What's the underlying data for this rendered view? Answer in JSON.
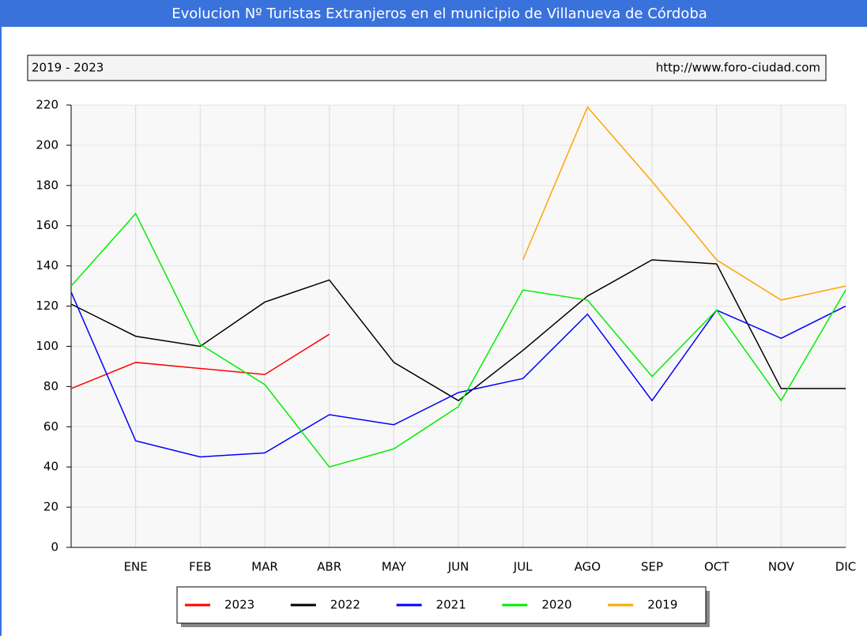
{
  "chart_data": {
    "type": "line",
    "title": "Evolucion Nº Turistas Extranjeros en el municipio de Villanueva de Córdoba",
    "subtitle": "2019 - 2023",
    "source": "http://www.foro-ciudad.com",
    "categories": [
      null,
      "ENE",
      "FEB",
      "MAR",
      "ABR",
      "MAY",
      "JUN",
      "JUL",
      "AGO",
      "SEP",
      "OCT",
      "NOV",
      "DIC"
    ],
    "ylim": [
      0,
      220
    ],
    "yticks": [
      0,
      20,
      40,
      60,
      80,
      100,
      120,
      140,
      160,
      180,
      200,
      220
    ],
    "grid": true,
    "legend": "bottom",
    "series": [
      {
        "name": "2023",
        "color": "#ff0000",
        "values": [
          79,
          92,
          89,
          86,
          106,
          null,
          null,
          null,
          null,
          null,
          null,
          null,
          null
        ]
      },
      {
        "name": "2022",
        "color": "#000000",
        "values": [
          121,
          105,
          100,
          122,
          133,
          92,
          73,
          98,
          125,
          143,
          141,
          79,
          79
        ]
      },
      {
        "name": "2021",
        "color": "#0000ff",
        "values": [
          127,
          53,
          45,
          47,
          66,
          61,
          77,
          84,
          116,
          73,
          118,
          104,
          120
        ]
      },
      {
        "name": "2020",
        "color": "#00ee00",
        "values": [
          130,
          166,
          101,
          81,
          40,
          49,
          70,
          128,
          123,
          85,
          118,
          73,
          128
        ]
      },
      {
        "name": "2019",
        "color": "#ffa500",
        "values": [
          null,
          null,
          null,
          null,
          null,
          null,
          null,
          143,
          219,
          182,
          143,
          123,
          130
        ]
      }
    ]
  }
}
